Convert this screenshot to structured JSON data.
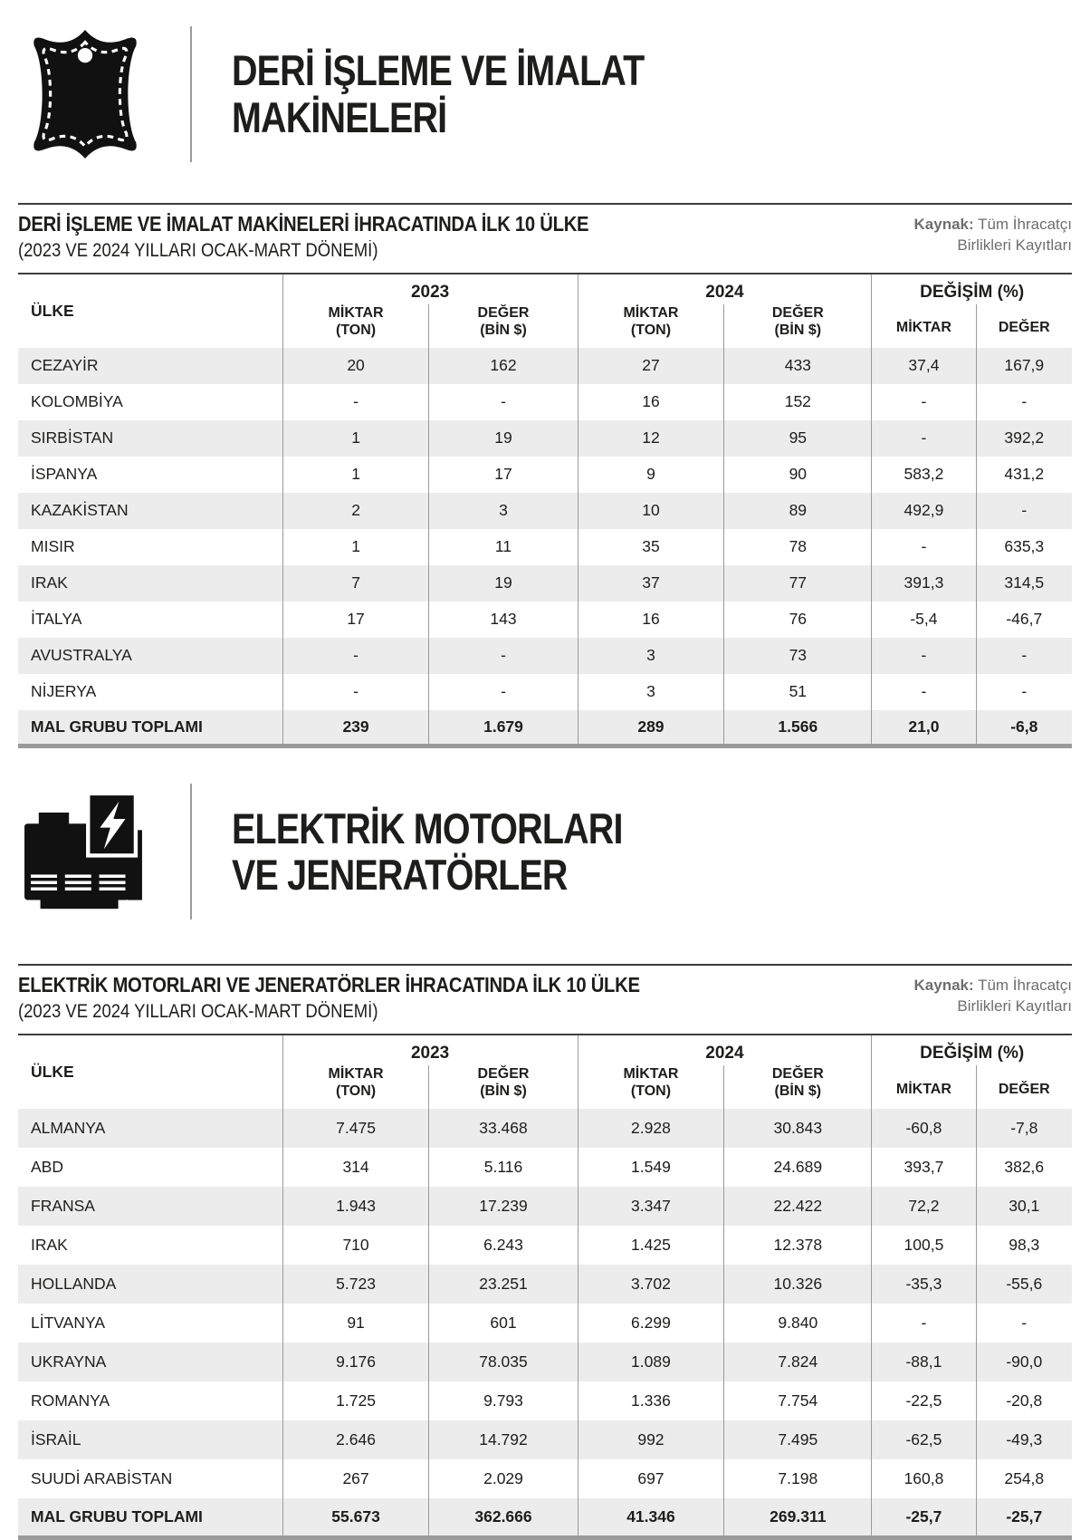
{
  "page": {
    "text_color": "#1d1d1b",
    "stripe_color": "#ececec",
    "rule_color": "#3d3d3d",
    "divider_color": "#9b9b9b",
    "bottom_border_color": "#9a9a9a",
    "source_color": "#6e6e6e"
  },
  "sections": [
    {
      "icon": "leather-hide-icon",
      "heading": {
        "line1": "DERİ İŞLEME VE İMALAT",
        "line2": "MAKİNELERİ"
      },
      "table": {
        "title": "DERİ İŞLEME VE İMALAT MAKİNELERİ İHRACATINDA İLK 10 ÜLKE",
        "subtitle": "(2023 VE 2024 YILLARI OCAK-MART DÖNEMİ)",
        "source": {
          "label": "Kaynak:",
          "line1": "Tüm İhracatçı",
          "line2": "Birlikleri Kayıtları"
        },
        "header": {
          "country": "ÜLKE",
          "group_2023": "2023",
          "group_2024": "2024",
          "group_change": "DEĞİŞİM (%)",
          "miktar": "MİKTAR",
          "miktar_unit": "(TON)",
          "deger": "DEĞER",
          "deger_unit": "(BİN $)"
        },
        "rows": [
          {
            "country": "CEZAYİR",
            "values": [
              "20",
              "162",
              "27",
              "433",
              "37,4",
              "167,9"
            ]
          },
          {
            "country": "KOLOMBİYA",
            "values": [
              "-",
              "-",
              "16",
              "152",
              "-",
              "-"
            ]
          },
          {
            "country": "SIRBİSTAN",
            "values": [
              "1",
              "19",
              "12",
              "95",
              "-",
              "392,2"
            ]
          },
          {
            "country": "İSPANYA",
            "values": [
              "1",
              "17",
              "9",
              "90",
              "583,2",
              "431,2"
            ]
          },
          {
            "country": "KAZAKİSTAN",
            "values": [
              "2",
              "3",
              "10",
              "89",
              "492,9",
              "-"
            ]
          },
          {
            "country": "MISIR",
            "values": [
              "1",
              "11",
              "35",
              "78",
              "-",
              "635,3"
            ]
          },
          {
            "country": "IRAK",
            "values": [
              "7",
              "19",
              "37",
              "77",
              "391,3",
              "314,5"
            ]
          },
          {
            "country": "İTALYA",
            "values": [
              "17",
              "143",
              "16",
              "76",
              "-5,4",
              "-46,7"
            ]
          },
          {
            "country": "AVUSTRALYA",
            "values": [
              "-",
              "-",
              "3",
              "73",
              "-",
              "-"
            ]
          },
          {
            "country": "NİJERYA",
            "values": [
              "-",
              "-",
              "3",
              "51",
              "-",
              "-"
            ]
          }
        ],
        "total": {
          "label": "MAL GRUBU TOPLAMI",
          "values": [
            "239",
            "1.679",
            "289",
            "1.566",
            "21,0",
            "-6,8"
          ]
        }
      }
    },
    {
      "icon": "generator-icon",
      "heading": {
        "line1": "ELEKTRİK MOTORLARI",
        "line2": "VE JENERATÖRLER"
      },
      "table": {
        "title": "ELEKTRİK MOTORLARI VE JENERATÖRLER İHRACATINDA İLK 10 ÜLKE",
        "subtitle": "(2023 VE 2024 YILLARI OCAK-MART DÖNEMİ)",
        "source": {
          "label": "Kaynak:",
          "line1": "Tüm İhracatçı",
          "line2": "Birlikleri Kayıtları"
        },
        "header": {
          "country": "ÜLKE",
          "group_2023": "2023",
          "group_2024": "2024",
          "group_change": "DEĞİŞİM (%)",
          "miktar": "MİKTAR",
          "miktar_unit": "(TON)",
          "deger": "DEĞER",
          "deger_unit": "(BİN $)"
        },
        "rows": [
          {
            "country": "ALMANYA",
            "values": [
              "7.475",
              "33.468",
              "2.928",
              "30.843",
              "-60,8",
              "-7,8"
            ]
          },
          {
            "country": "ABD",
            "values": [
              "314",
              "5.116",
              "1.549",
              "24.689",
              "393,7",
              "382,6"
            ]
          },
          {
            "country": "FRANSA",
            "values": [
              "1.943",
              "17.239",
              "3.347",
              "22.422",
              "72,2",
              "30,1"
            ]
          },
          {
            "country": "IRAK",
            "values": [
              "710",
              "6.243",
              "1.425",
              "12.378",
              "100,5",
              "98,3"
            ]
          },
          {
            "country": "HOLLANDA",
            "values": [
              "5.723",
              "23.251",
              "3.702",
              "10.326",
              "-35,3",
              "-55,6"
            ]
          },
          {
            "country": "LİTVANYA",
            "values": [
              "91",
              "601",
              "6.299",
              "9.840",
              "-",
              "-"
            ]
          },
          {
            "country": "UKRAYNA",
            "values": [
              "9.176",
              "78.035",
              "1.089",
              "7.824",
              "-88,1",
              "-90,0"
            ]
          },
          {
            "country": "ROMANYA",
            "values": [
              "1.725",
              "9.793",
              "1.336",
              "7.754",
              "-22,5",
              "-20,8"
            ]
          },
          {
            "country": "İSRAİL",
            "values": [
              "2.646",
              "14.792",
              "992",
              "7.495",
              "-62,5",
              "-49,3"
            ]
          },
          {
            "country": "SUUDİ ARABİSTAN",
            "values": [
              "267",
              "2.029",
              "697",
              "7.198",
              "160,8",
              "254,8"
            ]
          }
        ],
        "total": {
          "label": "MAL GRUBU TOPLAMI",
          "values": [
            "55.673",
            "362.666",
            "41.346",
            "269.311",
            "-25,7",
            "-25,7"
          ]
        }
      }
    }
  ]
}
